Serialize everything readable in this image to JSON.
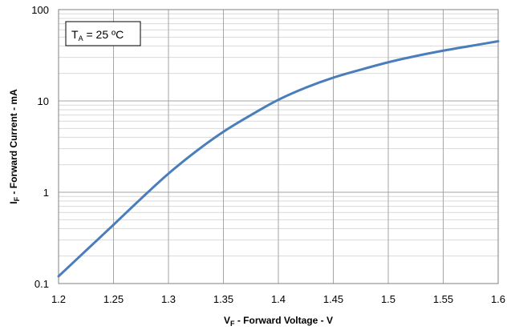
{
  "chart_data": {
    "type": "line",
    "xlabel": {
      "main": "V",
      "sub": "F",
      "rest": " - Forward Voltage - V"
    },
    "ylabel": {
      "main": "I",
      "sub": "F",
      "rest": " - Forward Current - mA"
    },
    "annotation": {
      "main": "T",
      "sub": "A",
      "rest": " = 25 ºC"
    },
    "x_ticks": [
      "1.2",
      "1.25",
      "1.3",
      "1.35",
      "1.4",
      "1.45",
      "1.5",
      "1.55",
      "1.6"
    ],
    "y_ticks": [
      "0.1",
      "1",
      "10",
      "100"
    ],
    "xlim": [
      1.2,
      1.6
    ],
    "ylim": [
      0.1,
      100
    ],
    "y_scale": "log",
    "grid": true,
    "series": [
      {
        "color": "#4a7ebb",
        "x": [
          1.2,
          1.225,
          1.25,
          1.275,
          1.3,
          1.325,
          1.35,
          1.375,
          1.4,
          1.425,
          1.45,
          1.475,
          1.5,
          1.525,
          1.55,
          1.575,
          1.6
        ],
        "y": [
          0.12,
          0.23,
          0.44,
          0.85,
          1.6,
          2.8,
          4.6,
          7.0,
          10.3,
          14.0,
          18.0,
          22.0,
          26.5,
          31.0,
          35.5,
          40.0,
          45.0
        ]
      }
    ]
  }
}
